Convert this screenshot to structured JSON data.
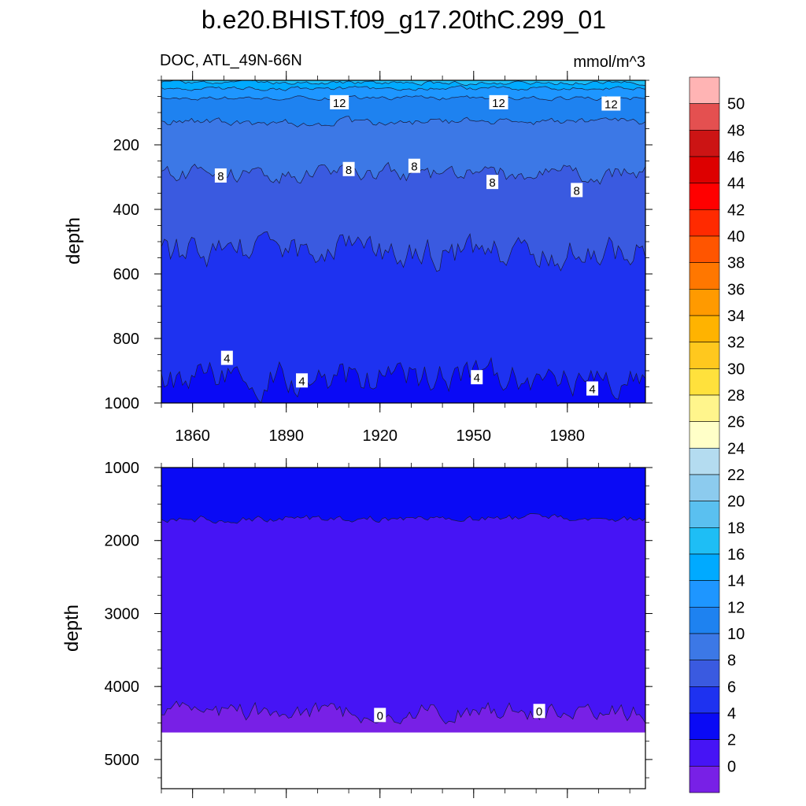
{
  "title": "b.e20.BHIST.f09_g17.20thC.299_01",
  "chart_data": [
    {
      "type": "heatmap",
      "subtype": "depth-time contour",
      "left_label": "DOC, ATL_49N-66N",
      "right_label": "mmol/m^3",
      "ylabel": "depth",
      "xlim": [
        1850,
        2005
      ],
      "ylim": [
        1000,
        0
      ],
      "y_ticks": [
        200,
        400,
        600,
        800,
        1000
      ],
      "x_ticks": [
        1860,
        1890,
        1920,
        1950,
        1980
      ],
      "contour_levels": [
        16,
        14,
        12,
        10,
        8,
        6,
        4
      ],
      "contour_depths": [
        {
          "level": 16,
          "depth": 8
        },
        {
          "level": 14,
          "depth": 25
        },
        {
          "level": 12,
          "depth": 55
        },
        {
          "level": 10,
          "depth": 130
        },
        {
          "level": 8,
          "depth": 290
        },
        {
          "level": 6,
          "depth": 530
        },
        {
          "level": 4,
          "depth": 920
        }
      ],
      "line_labels": [
        {
          "text": "12",
          "x": 1907,
          "y": 68
        },
        {
          "text": "12",
          "x": 1958,
          "y": 68
        },
        {
          "text": "12",
          "x": 1994,
          "y": 72
        },
        {
          "text": "8",
          "x": 1869,
          "y": 295
        },
        {
          "text": "8",
          "x": 1910,
          "y": 275
        },
        {
          "text": "8",
          "x": 1931,
          "y": 265
        },
        {
          "text": "8",
          "x": 1956,
          "y": 315
        },
        {
          "text": "8",
          "x": 1983,
          "y": 340
        },
        {
          "text": "4",
          "x": 1871,
          "y": 860
        },
        {
          "text": "4",
          "x": 1895,
          "y": 930
        },
        {
          "text": "4",
          "x": 1951,
          "y": 920
        },
        {
          "text": "4",
          "x": 1988,
          "y": 955
        }
      ]
    },
    {
      "type": "heatmap",
      "subtype": "depth-time contour",
      "ylabel": "depth",
      "xlim": [
        1850,
        2005
      ],
      "ylim": [
        5400,
        1000
      ],
      "y_ticks": [
        1000,
        2000,
        3000,
        4000,
        5000
      ],
      "contour_levels": [
        2,
        0
      ],
      "contour_depths": [
        {
          "level": 2,
          "depth": 1700
        },
        {
          "level": 0,
          "depth": 4350
        }
      ],
      "no_data_below_depth": 4630,
      "line_labels": [
        {
          "text": "0",
          "x": 1920,
          "y": 4390
        },
        {
          "text": "0",
          "x": 1971,
          "y": 4335
        }
      ]
    }
  ],
  "colorbar": {
    "tick_labels": [
      "50",
      "48",
      "46",
      "44",
      "42",
      "40",
      "38",
      "36",
      "34",
      "32",
      "30",
      "28",
      "26",
      "24",
      "22",
      "20",
      "18",
      "16",
      "14",
      "12",
      "10",
      "8",
      "6",
      "4",
      "2",
      "0"
    ],
    "colors": [
      "#ffb4b4",
      "#e45050",
      "#cc1414",
      "#dd0000",
      "#ff0000",
      "#ff2a00",
      "#ff5500",
      "#ff7700",
      "#ff9a00",
      "#ffb300",
      "#ffc81e",
      "#ffe13c",
      "#fff58c",
      "#ffffc8",
      "#b4dcf0",
      "#8ccbee",
      "#5ac0f0",
      "#1ebef5",
      "#00aaff",
      "#1e96ff",
      "#1e82f0",
      "#3c78e6",
      "#3a5ae0",
      "#1e32f0",
      "#0a0af5",
      "#4614f5",
      "#7820e6"
    ]
  }
}
